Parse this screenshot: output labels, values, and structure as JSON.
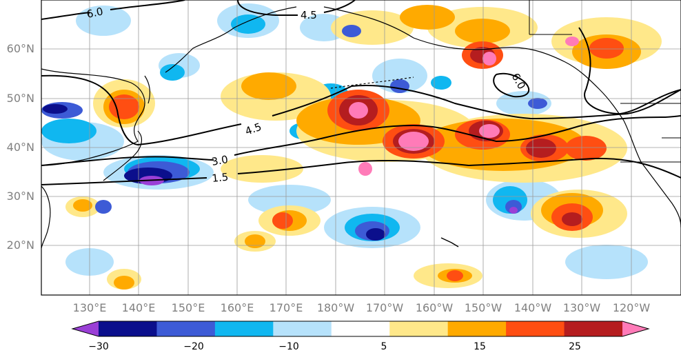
{
  "map": {
    "lat_labels": [
      "60°N",
      "50°N",
      "40°N",
      "30°N",
      "20°N"
    ],
    "lon_labels": [
      "130°E",
      "140°E",
      "150°E",
      "160°E",
      "170°E",
      "180°W",
      "170°W",
      "160°W",
      "150°W",
      "140°W",
      "130°W",
      "120°W"
    ],
    "contour_labels": [
      "6.0",
      "4.5",
      "6.0",
      "4.5",
      "3.0",
      "1.5"
    ],
    "axis_label_color": "#808080",
    "grid_color": "#9a9a9a"
  },
  "colorbar": {
    "tick_labels": [
      "−30",
      "−20",
      "−10",
      "5",
      "15",
      "25"
    ],
    "colors": [
      "#9a3fd6",
      "#0b0f8c",
      "#3d5bd6",
      "#10b7f0",
      "#b6e2fb",
      "#ffffff",
      "#ffe88a",
      "#ffaa00",
      "#ff4e12",
      "#b51d1f",
      "#ff7bb8"
    ]
  }
}
